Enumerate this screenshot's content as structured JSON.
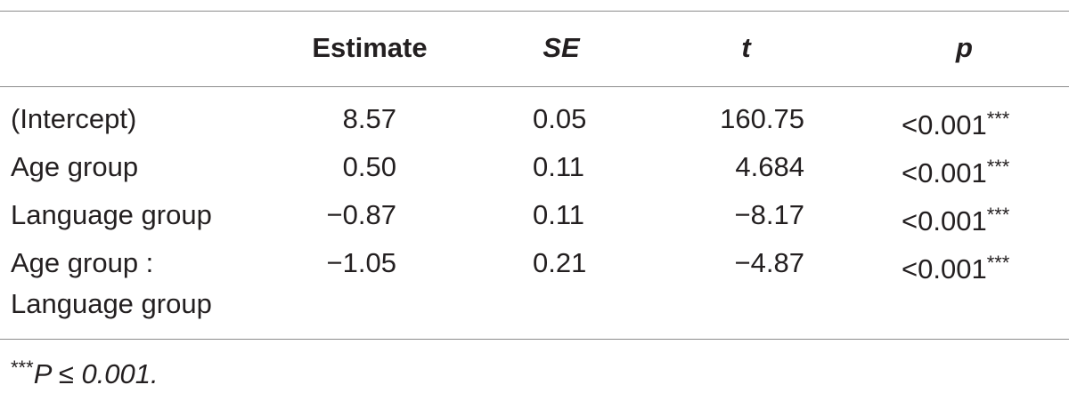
{
  "table": {
    "headers": {
      "estimate": "Estimate",
      "se": "SE",
      "t": "t",
      "p": "p"
    },
    "rows": [
      {
        "label": [
          "(Intercept)"
        ],
        "estimate": "8.57",
        "se": "0.05",
        "t": "160.75",
        "p": "<0.001",
        "p_stars": "***"
      },
      {
        "label": [
          "Age group"
        ],
        "estimate": "0.50",
        "se": "0.11",
        "t": "4.684",
        "p": "<0.001",
        "p_stars": "***"
      },
      {
        "label": [
          "Language group"
        ],
        "estimate": "−0.87",
        "se": "0.11",
        "t": "−8.17",
        "p": "<0.001",
        "p_stars": "***"
      },
      {
        "label": [
          "Age group :",
          "Language group"
        ],
        "estimate": "−1.05",
        "se": "0.21",
        "t": "−4.87",
        "p": "<0.001",
        "p_stars": "***"
      }
    ]
  },
  "footnote": {
    "stars": "***",
    "text": "P ≤ 0.001."
  }
}
